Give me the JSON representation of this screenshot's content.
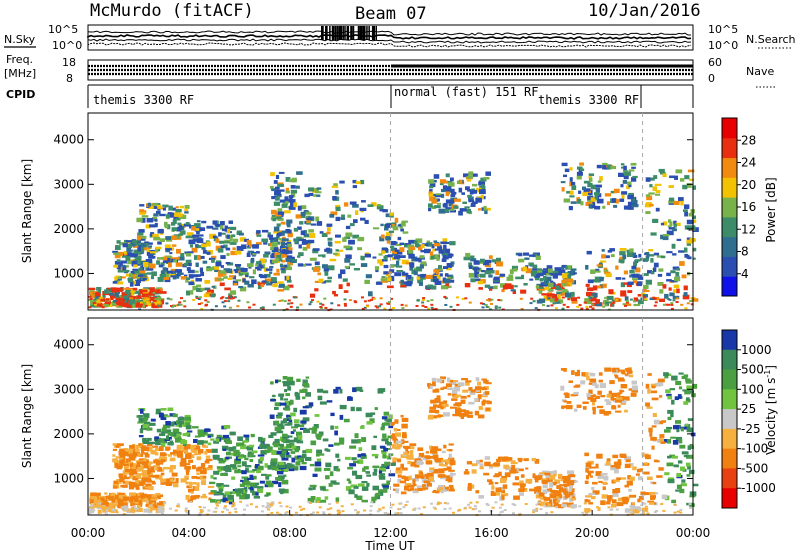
{
  "header": {
    "station": "McMurdo (fitACF)",
    "beam": "Beam 07",
    "date": "10/Jan/2016"
  },
  "top_panels": {
    "nsky_label": "N.Sky",
    "nsky_ticks": [
      "10^5",
      "10^0"
    ],
    "nsearch_label": "N.Search",
    "nsearch_ticks": [
      "10^5",
      "10^0"
    ],
    "freq_label_1": "Freq.",
    "freq_label_2": "[MHz]",
    "freq_ticks": [
      "18",
      "8"
    ],
    "nave_label": "Nave",
    "nave_ticks": [
      "60",
      "0"
    ],
    "cpid_label": "CPID",
    "cpid_segments": [
      "themis 3300 RF",
      "normal (fast) 151 RF",
      "themis 3300 RF"
    ]
  },
  "chart_data": [
    {
      "type": "heatmap",
      "name": "power",
      "ylabel": "Slant Range [km]",
      "y_ticks": [
        "1000",
        "2000",
        "3000",
        "4000"
      ],
      "ylim": [
        180,
        4600
      ],
      "colorbar_label": "Power [dB]",
      "colorbar_ticks": [
        "4",
        "8",
        "12",
        "16",
        "20",
        "24",
        "28"
      ],
      "colorbar_range": [
        0,
        32
      ],
      "colors": [
        "#1010e8",
        "#2a4fb0",
        "#2f6e8f",
        "#3c8c6a",
        "#78b24a",
        "#f2c200",
        "#f08a10",
        "#e83010",
        "#e80000"
      ]
    },
    {
      "type": "heatmap",
      "name": "velocity",
      "ylabel": "Slant Range [km]",
      "y_ticks": [
        "1000",
        "2000",
        "3000",
        "4000"
      ],
      "ylim": [
        180,
        4600
      ],
      "colorbar_label": "Velocity [m s^-1]",
      "colorbar_ticks": [
        "1000",
        "500",
        "100",
        "25",
        "-25",
        "-100",
        "-500",
        "-1000"
      ],
      "colors": [
        "#1838a8",
        "#3a8a5a",
        "#4aa040",
        "#70c440",
        "#c8c8c8",
        "#f5b040",
        "#f08010",
        "#e84010",
        "#e80000"
      ]
    }
  ],
  "time_axis": {
    "label": "Time UT",
    "ticks": [
      "00:00",
      "04:00",
      "08:00",
      "12:00",
      "16:00",
      "20:00",
      "00:00"
    ]
  }
}
